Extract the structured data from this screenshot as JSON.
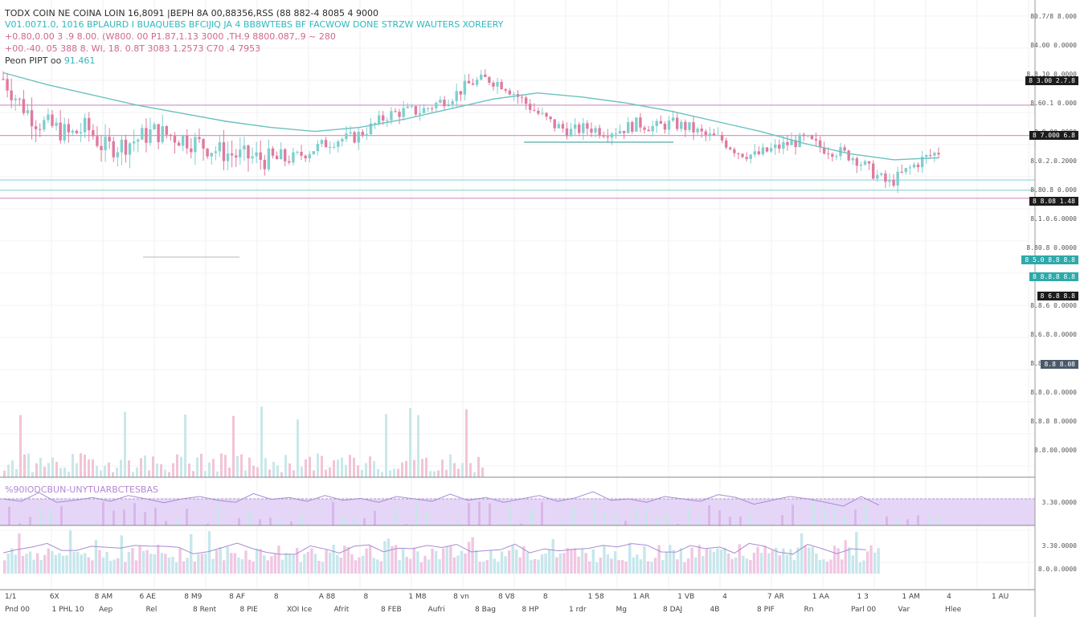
{
  "header": {
    "line1": "TODX COIN NE COINA LOIN 16,8091 |BEPH 8A 00,88356,RSS (88 882-4 8085 4 9000",
    "line2": "V01.0071.0, 1016 BPLAURD I BUAQUEBS BFCIJIQ JA 4 BB8WTEBS BF FACWOW DONE STRZW WAUTERS XOREERY",
    "line3": "+0.80,0.00 3 .9 8.00. (W800. 00 P1.87,1.13 3000 ,TH.9 8800.087,.9 ~ 280",
    "line4": "+00.-40. 05 388 8. WI, 18. 0.8T 3083 1.2573 C70 .4 7953",
    "line5_label": "Peon PIPT oo",
    "line5_value": "91.461"
  },
  "oscillator": {
    "label": "%90IODCBUN-UNYTUARBCTESBAS"
  },
  "colors": {
    "bull": "#7fcfcf",
    "bear": "#e07a9e",
    "ma": "#6cc1c1",
    "rsi_fill": "#e5d6f8",
    "rsi_line": "#a98bd2",
    "level_pink": "#d69acb",
    "level_teal": "#8fd3d3"
  },
  "price_axis": [
    "80.7/8 8.000",
    "84.00 0.0000",
    "8.8.10 0.0000",
    "8.60.1 0.000",
    "8.8,00.0000",
    "8.0.2.0.2000",
    "8.80.8 0.000",
    "8.1.0.6.0000",
    "8.80.8 0.0000",
    "8.03 0.0000",
    "8.8.6 0.0000",
    "8.6.8.0.0000",
    "8.8.0.9.8000",
    "8.8.0.0.0000",
    "8.8.8 8.0000",
    "8.8.00.0000"
  ],
  "osc_axis": [
    "3.30.0000",
    "3.30.0000",
    "8.0.0.0000"
  ],
  "tags": [
    {
      "label": "8 3.00 2.7.8",
      "style": "dark"
    },
    {
      "label": "8 7.000 6.8",
      "style": "dark"
    },
    {
      "label": "8 8.08 1.48",
      "style": "dark"
    },
    {
      "label": "8 5.0 8.8 8.8",
      "style": "teal"
    },
    {
      "label": "8 8.8.8 8.8",
      "style": "teal"
    },
    {
      "label": "8 6.8 8.8",
      "style": "dark"
    },
    {
      "label": "8.8 8.08",
      "style": "slate"
    }
  ],
  "x_axis_labels": [
    "1/1",
    "6X",
    "8 AM",
    "6 AE",
    "8 M9",
    "8 AF",
    "8",
    "A 88",
    "8",
    "1 M8",
    "8 vn",
    "8 V8",
    "8",
    "1 58",
    "1 AR",
    "1 VB",
    "4",
    "7 AR",
    "1 AA",
    "1 3",
    "1 AM",
    "4",
    "1 AU"
  ],
  "bottom_bar": [
    "Pnd 00",
    "1 PHL 10",
    "Aep",
    "Rel",
    "8 Rent",
    "8 PIE",
    "XOI Ice",
    "Afrit",
    "8 FEB",
    "Aufri",
    "8 Bag",
    "8 HP",
    "1 rdr",
    "Mg",
    "8 DAJ",
    "4B",
    "8 PIF",
    "Rn",
    "Parl 00",
    "Var",
    "Hlee"
  ],
  "chart_data": {
    "type": "candlestick",
    "title": "TODX COIN",
    "x": [
      "1/1",
      "6X",
      "8 AM",
      "6 AE",
      "8 M9",
      "8 AF",
      "8",
      "A 88",
      "8",
      "1 M8",
      "8 vn",
      "8 V8",
      "8",
      "1 58",
      "1 AR",
      "1 VB",
      "4",
      "7 AR",
      "1 AA",
      "1 3",
      "1 AM",
      "4",
      "1 AU"
    ],
    "price_ylim": [
      0,
      1
    ],
    "close_profile": [
      0.96,
      0.84,
      0.75,
      0.72,
      0.68,
      0.72,
      0.62,
      0.63,
      0.66,
      0.7,
      0.68,
      0.66,
      0.63,
      0.6,
      0.58,
      0.57,
      0.56,
      0.56,
      0.59,
      0.63,
      0.66,
      0.67,
      0.72,
      0.78,
      0.8,
      0.8,
      0.84,
      0.88,
      0.94,
      0.96,
      0.93,
      0.86,
      0.79,
      0.73,
      0.7,
      0.72,
      0.7,
      0.71,
      0.74,
      0.72,
      0.74,
      0.72,
      0.68,
      0.66,
      0.6,
      0.58,
      0.61,
      0.64,
      0.66,
      0.62,
      0.6,
      0.57,
      0.5,
      0.44,
      0.5,
      0.56,
      0.6
    ],
    "moving_average": [
      0.99,
      0.93,
      0.88,
      0.83,
      0.79,
      0.75,
      0.72,
      0.7,
      0.72,
      0.76,
      0.81,
      0.86,
      0.89,
      0.87,
      0.84,
      0.8,
      0.75,
      0.7,
      0.64,
      0.59,
      0.56,
      0.57
    ],
    "levels": [
      {
        "value": 0.83,
        "color": "pink"
      },
      {
        "value": 0.68,
        "color": "pink"
      },
      {
        "value": 0.46,
        "color": "teal"
      },
      {
        "value": 0.41,
        "color": "teal"
      },
      {
        "value": 0.37,
        "color": "pink"
      }
    ],
    "oscillator": {
      "label": "%90IODCBUN-UNYTUARBCTESBAS",
      "upper_level": 0.55,
      "values": [
        0.55,
        0.5,
        0.68,
        0.48,
        0.52,
        0.58,
        0.5,
        0.62,
        0.55,
        0.47,
        0.55,
        0.6,
        0.52,
        0.48,
        0.66,
        0.54,
        0.58,
        0.5,
        0.62,
        0.52,
        0.56,
        0.48,
        0.6,
        0.55,
        0.5,
        0.65,
        0.52,
        0.58,
        0.48,
        0.55,
        0.62,
        0.5,
        0.57,
        0.7,
        0.52,
        0.55,
        0.48,
        0.6,
        0.55,
        0.5,
        0.64,
        0.58,
        0.44,
        0.52,
        0.6,
        0.55,
        0.48,
        0.4,
        0.6,
        0.42
      ]
    },
    "grid": true
  }
}
